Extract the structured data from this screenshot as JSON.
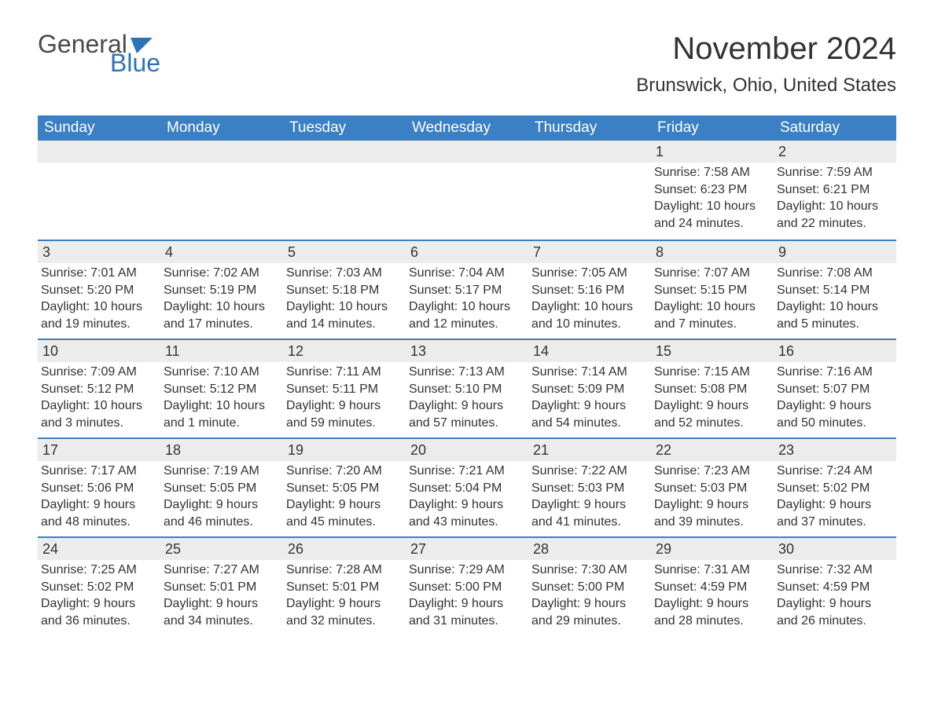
{
  "logo": {
    "text1": "General",
    "text2": "Blue",
    "flag_color": "#2d73b8"
  },
  "title": "November 2024",
  "location": "Brunswick, Ohio, United States",
  "colors": {
    "header_bg": "#3b7fc4",
    "header_text": "#ffffff",
    "daynum_bg": "#ececec",
    "border": "#3b7fc4",
    "text": "#333333",
    "logo_gray": "#4a4a4a",
    "logo_blue": "#2d73b8"
  },
  "weekdays": [
    "Sunday",
    "Monday",
    "Tuesday",
    "Wednesday",
    "Thursday",
    "Friday",
    "Saturday"
  ],
  "weeks": [
    [
      null,
      null,
      null,
      null,
      null,
      {
        "n": "1",
        "sr": "Sunrise: 7:58 AM",
        "ss": "Sunset: 6:23 PM",
        "dl": "Daylight: 10 hours and 24 minutes."
      },
      {
        "n": "2",
        "sr": "Sunrise: 7:59 AM",
        "ss": "Sunset: 6:21 PM",
        "dl": "Daylight: 10 hours and 22 minutes."
      }
    ],
    [
      {
        "n": "3",
        "sr": "Sunrise: 7:01 AM",
        "ss": "Sunset: 5:20 PM",
        "dl": "Daylight: 10 hours and 19 minutes."
      },
      {
        "n": "4",
        "sr": "Sunrise: 7:02 AM",
        "ss": "Sunset: 5:19 PM",
        "dl": "Daylight: 10 hours and 17 minutes."
      },
      {
        "n": "5",
        "sr": "Sunrise: 7:03 AM",
        "ss": "Sunset: 5:18 PM",
        "dl": "Daylight: 10 hours and 14 minutes."
      },
      {
        "n": "6",
        "sr": "Sunrise: 7:04 AM",
        "ss": "Sunset: 5:17 PM",
        "dl": "Daylight: 10 hours and 12 minutes."
      },
      {
        "n": "7",
        "sr": "Sunrise: 7:05 AM",
        "ss": "Sunset: 5:16 PM",
        "dl": "Daylight: 10 hours and 10 minutes."
      },
      {
        "n": "8",
        "sr": "Sunrise: 7:07 AM",
        "ss": "Sunset: 5:15 PM",
        "dl": "Daylight: 10 hours and 7 minutes."
      },
      {
        "n": "9",
        "sr": "Sunrise: 7:08 AM",
        "ss": "Sunset: 5:14 PM",
        "dl": "Daylight: 10 hours and 5 minutes."
      }
    ],
    [
      {
        "n": "10",
        "sr": "Sunrise: 7:09 AM",
        "ss": "Sunset: 5:12 PM",
        "dl": "Daylight: 10 hours and 3 minutes."
      },
      {
        "n": "11",
        "sr": "Sunrise: 7:10 AM",
        "ss": "Sunset: 5:12 PM",
        "dl": "Daylight: 10 hours and 1 minute."
      },
      {
        "n": "12",
        "sr": "Sunrise: 7:11 AM",
        "ss": "Sunset: 5:11 PM",
        "dl": "Daylight: 9 hours and 59 minutes."
      },
      {
        "n": "13",
        "sr": "Sunrise: 7:13 AM",
        "ss": "Sunset: 5:10 PM",
        "dl": "Daylight: 9 hours and 57 minutes."
      },
      {
        "n": "14",
        "sr": "Sunrise: 7:14 AM",
        "ss": "Sunset: 5:09 PM",
        "dl": "Daylight: 9 hours and 54 minutes."
      },
      {
        "n": "15",
        "sr": "Sunrise: 7:15 AM",
        "ss": "Sunset: 5:08 PM",
        "dl": "Daylight: 9 hours and 52 minutes."
      },
      {
        "n": "16",
        "sr": "Sunrise: 7:16 AM",
        "ss": "Sunset: 5:07 PM",
        "dl": "Daylight: 9 hours and 50 minutes."
      }
    ],
    [
      {
        "n": "17",
        "sr": "Sunrise: 7:17 AM",
        "ss": "Sunset: 5:06 PM",
        "dl": "Daylight: 9 hours and 48 minutes."
      },
      {
        "n": "18",
        "sr": "Sunrise: 7:19 AM",
        "ss": "Sunset: 5:05 PM",
        "dl": "Daylight: 9 hours and 46 minutes."
      },
      {
        "n": "19",
        "sr": "Sunrise: 7:20 AM",
        "ss": "Sunset: 5:05 PM",
        "dl": "Daylight: 9 hours and 45 minutes."
      },
      {
        "n": "20",
        "sr": "Sunrise: 7:21 AM",
        "ss": "Sunset: 5:04 PM",
        "dl": "Daylight: 9 hours and 43 minutes."
      },
      {
        "n": "21",
        "sr": "Sunrise: 7:22 AM",
        "ss": "Sunset: 5:03 PM",
        "dl": "Daylight: 9 hours and 41 minutes."
      },
      {
        "n": "22",
        "sr": "Sunrise: 7:23 AM",
        "ss": "Sunset: 5:03 PM",
        "dl": "Daylight: 9 hours and 39 minutes."
      },
      {
        "n": "23",
        "sr": "Sunrise: 7:24 AM",
        "ss": "Sunset: 5:02 PM",
        "dl": "Daylight: 9 hours and 37 minutes."
      }
    ],
    [
      {
        "n": "24",
        "sr": "Sunrise: 7:25 AM",
        "ss": "Sunset: 5:02 PM",
        "dl": "Daylight: 9 hours and 36 minutes."
      },
      {
        "n": "25",
        "sr": "Sunrise: 7:27 AM",
        "ss": "Sunset: 5:01 PM",
        "dl": "Daylight: 9 hours and 34 minutes."
      },
      {
        "n": "26",
        "sr": "Sunrise: 7:28 AM",
        "ss": "Sunset: 5:01 PM",
        "dl": "Daylight: 9 hours and 32 minutes."
      },
      {
        "n": "27",
        "sr": "Sunrise: 7:29 AM",
        "ss": "Sunset: 5:00 PM",
        "dl": "Daylight: 9 hours and 31 minutes."
      },
      {
        "n": "28",
        "sr": "Sunrise: 7:30 AM",
        "ss": "Sunset: 5:00 PM",
        "dl": "Daylight: 9 hours and 29 minutes."
      },
      {
        "n": "29",
        "sr": "Sunrise: 7:31 AM",
        "ss": "Sunset: 4:59 PM",
        "dl": "Daylight: 9 hours and 28 minutes."
      },
      {
        "n": "30",
        "sr": "Sunrise: 7:32 AM",
        "ss": "Sunset: 4:59 PM",
        "dl": "Daylight: 9 hours and 26 minutes."
      }
    ]
  ]
}
